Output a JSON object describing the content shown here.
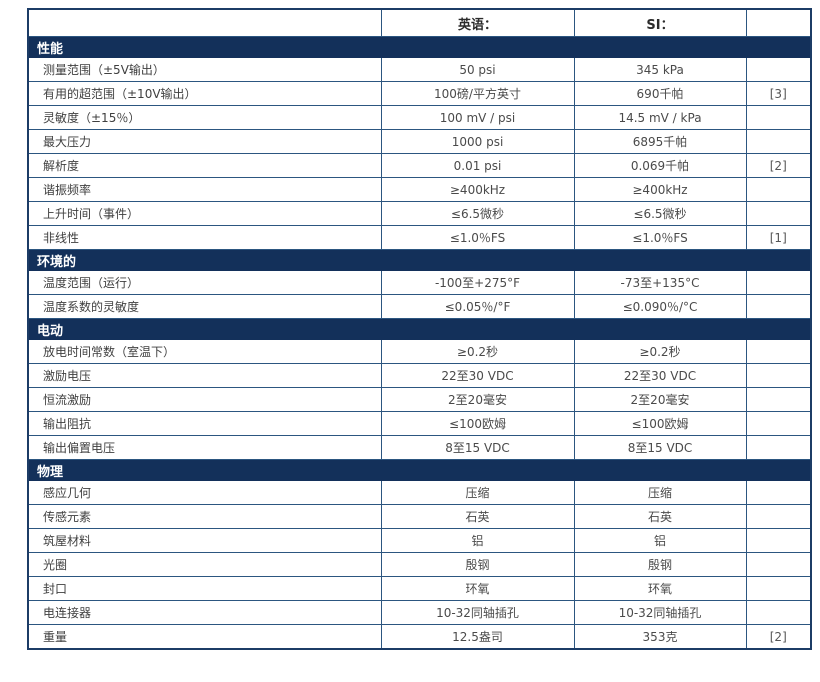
{
  "colors": {
    "section_header_bg": "#13305a",
    "section_header_text": "#ffffff",
    "grid_border": "#2c5680",
    "outer_border": "#1c3c66",
    "value_text": "#4a4a4a",
    "page_bg": "#ffffff"
  },
  "table": {
    "columns": {
      "label": "",
      "english": "英语：",
      "si": "SI：",
      "notes": ""
    },
    "sections": [
      {
        "title": "性能",
        "rows": [
          {
            "label": "测量范围（±5V输出）",
            "english": "50 psi",
            "si": "345 kPa",
            "note": ""
          },
          {
            "label": "有用的超范围（±10V输出）",
            "english": "100磅/平方英寸",
            "si": "690千帕",
            "note": "[3]"
          },
          {
            "label": "灵敏度（±15％）",
            "english": "100 mV / psi",
            "si": "14.5 mV / kPa",
            "note": ""
          },
          {
            "label": "最大压力",
            "english": "1000 psi",
            "si": "6895千帕",
            "note": ""
          },
          {
            "label": "解析度",
            "english": "0.01 psi",
            "si": "0.069千帕",
            "note": "[2]"
          },
          {
            "label": "谐振频率",
            "english": "≥400kHz",
            "si": "≥400kHz",
            "note": ""
          },
          {
            "label": "上升时间（事件）",
            "english": "≤6.5微秒",
            "si": "≤6.5微秒",
            "note": ""
          },
          {
            "label": "非线性",
            "english": "≤1.0％FS",
            "si": "≤1.0％FS",
            "note": "[1]"
          }
        ]
      },
      {
        "title": "环境的",
        "rows": [
          {
            "label": "温度范围（运行）",
            "english": "-100至+275°F",
            "si": "-73至+135°C",
            "note": ""
          },
          {
            "label": "温度系数的灵敏度",
            "english": "≤0.05％/°F",
            "si": "≤0.090％/°C",
            "note": ""
          }
        ]
      },
      {
        "title": "电动",
        "rows": [
          {
            "label": "放电时间常数（室温下）",
            "english": "≥0.2秒",
            "si": "≥0.2秒",
            "note": ""
          },
          {
            "label": "激励电压",
            "english": "22至30 VDC",
            "si": "22至30 VDC",
            "note": ""
          },
          {
            "label": "恒流激励",
            "english": "2至20毫安",
            "si": "2至20毫安",
            "note": ""
          },
          {
            "label": "输出阻抗",
            "english": "≤100欧姆",
            "si": "≤100欧姆",
            "note": ""
          },
          {
            "label": "输出偏置电压",
            "english": "8至15 VDC",
            "si": "8至15 VDC",
            "note": ""
          }
        ]
      },
      {
        "title": "物理",
        "rows": [
          {
            "label": "感应几何",
            "english": "压缩",
            "si": "压缩",
            "note": ""
          },
          {
            "label": "传感元素",
            "english": "石英",
            "si": "石英",
            "note": ""
          },
          {
            "label": "筑屋材料",
            "english": "铝",
            "si": "铝",
            "note": ""
          },
          {
            "label": "光圈",
            "english": "殷钢",
            "si": "殷钢",
            "note": ""
          },
          {
            "label": "封口",
            "english": "环氧",
            "si": "环氧",
            "note": ""
          },
          {
            "label": "电连接器",
            "english": "10-32同轴插孔",
            "si": "10-32同轴插孔",
            "note": ""
          },
          {
            "label": "重量",
            "english": "12.5盎司",
            "si": "353克",
            "note": "[2]"
          }
        ]
      }
    ]
  }
}
